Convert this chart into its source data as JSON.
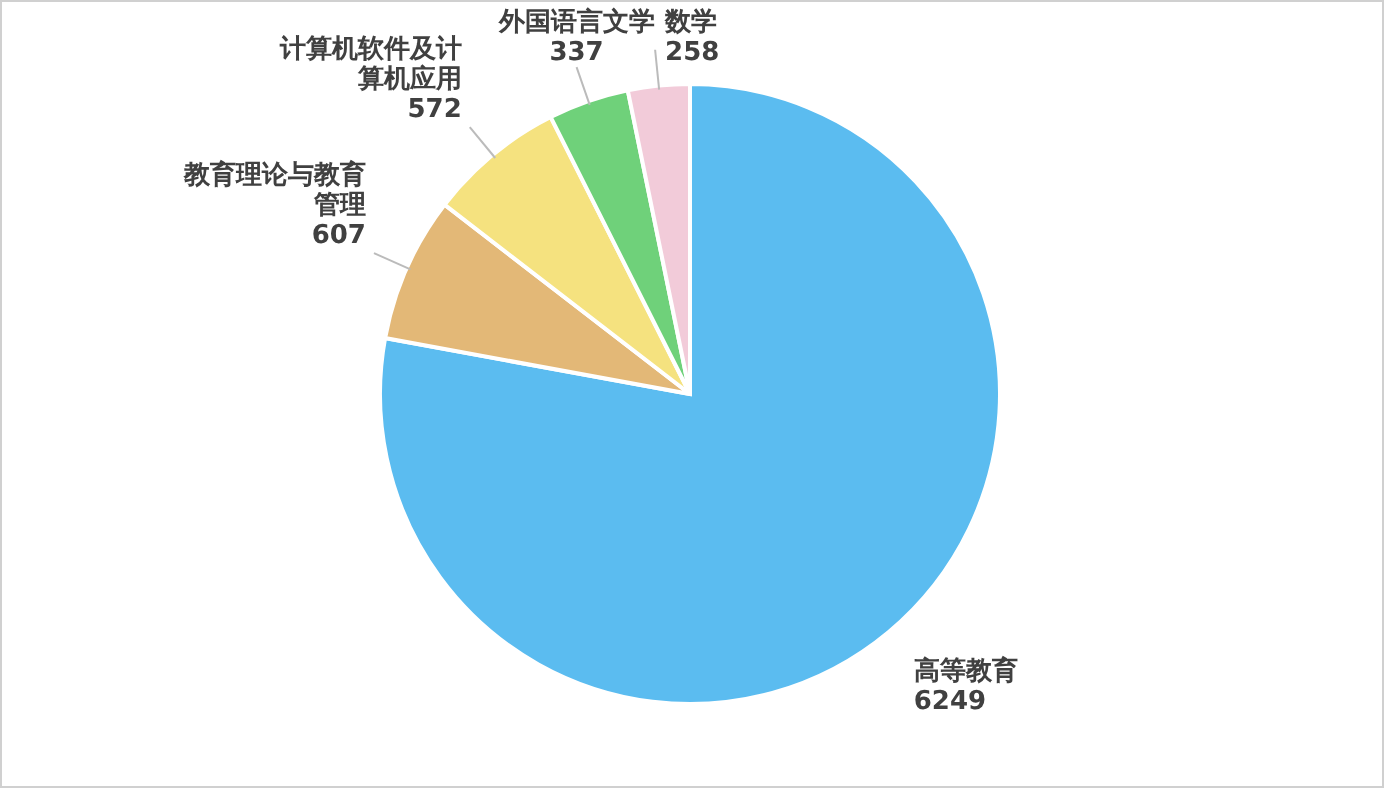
{
  "chart_data": {
    "type": "pie",
    "categories": [
      "高等教育",
      "教育理论与教育管理",
      "计算机软件及计算机应用",
      "外国语言文学",
      "数学"
    ],
    "values": [
      6249,
      607,
      572,
      337,
      258
    ],
    "colors": [
      "#5bbcf0",
      "#e3b877",
      "#f5e27f",
      "#6fd17a",
      "#f2cbd9"
    ],
    "data_labels": true
  }
}
